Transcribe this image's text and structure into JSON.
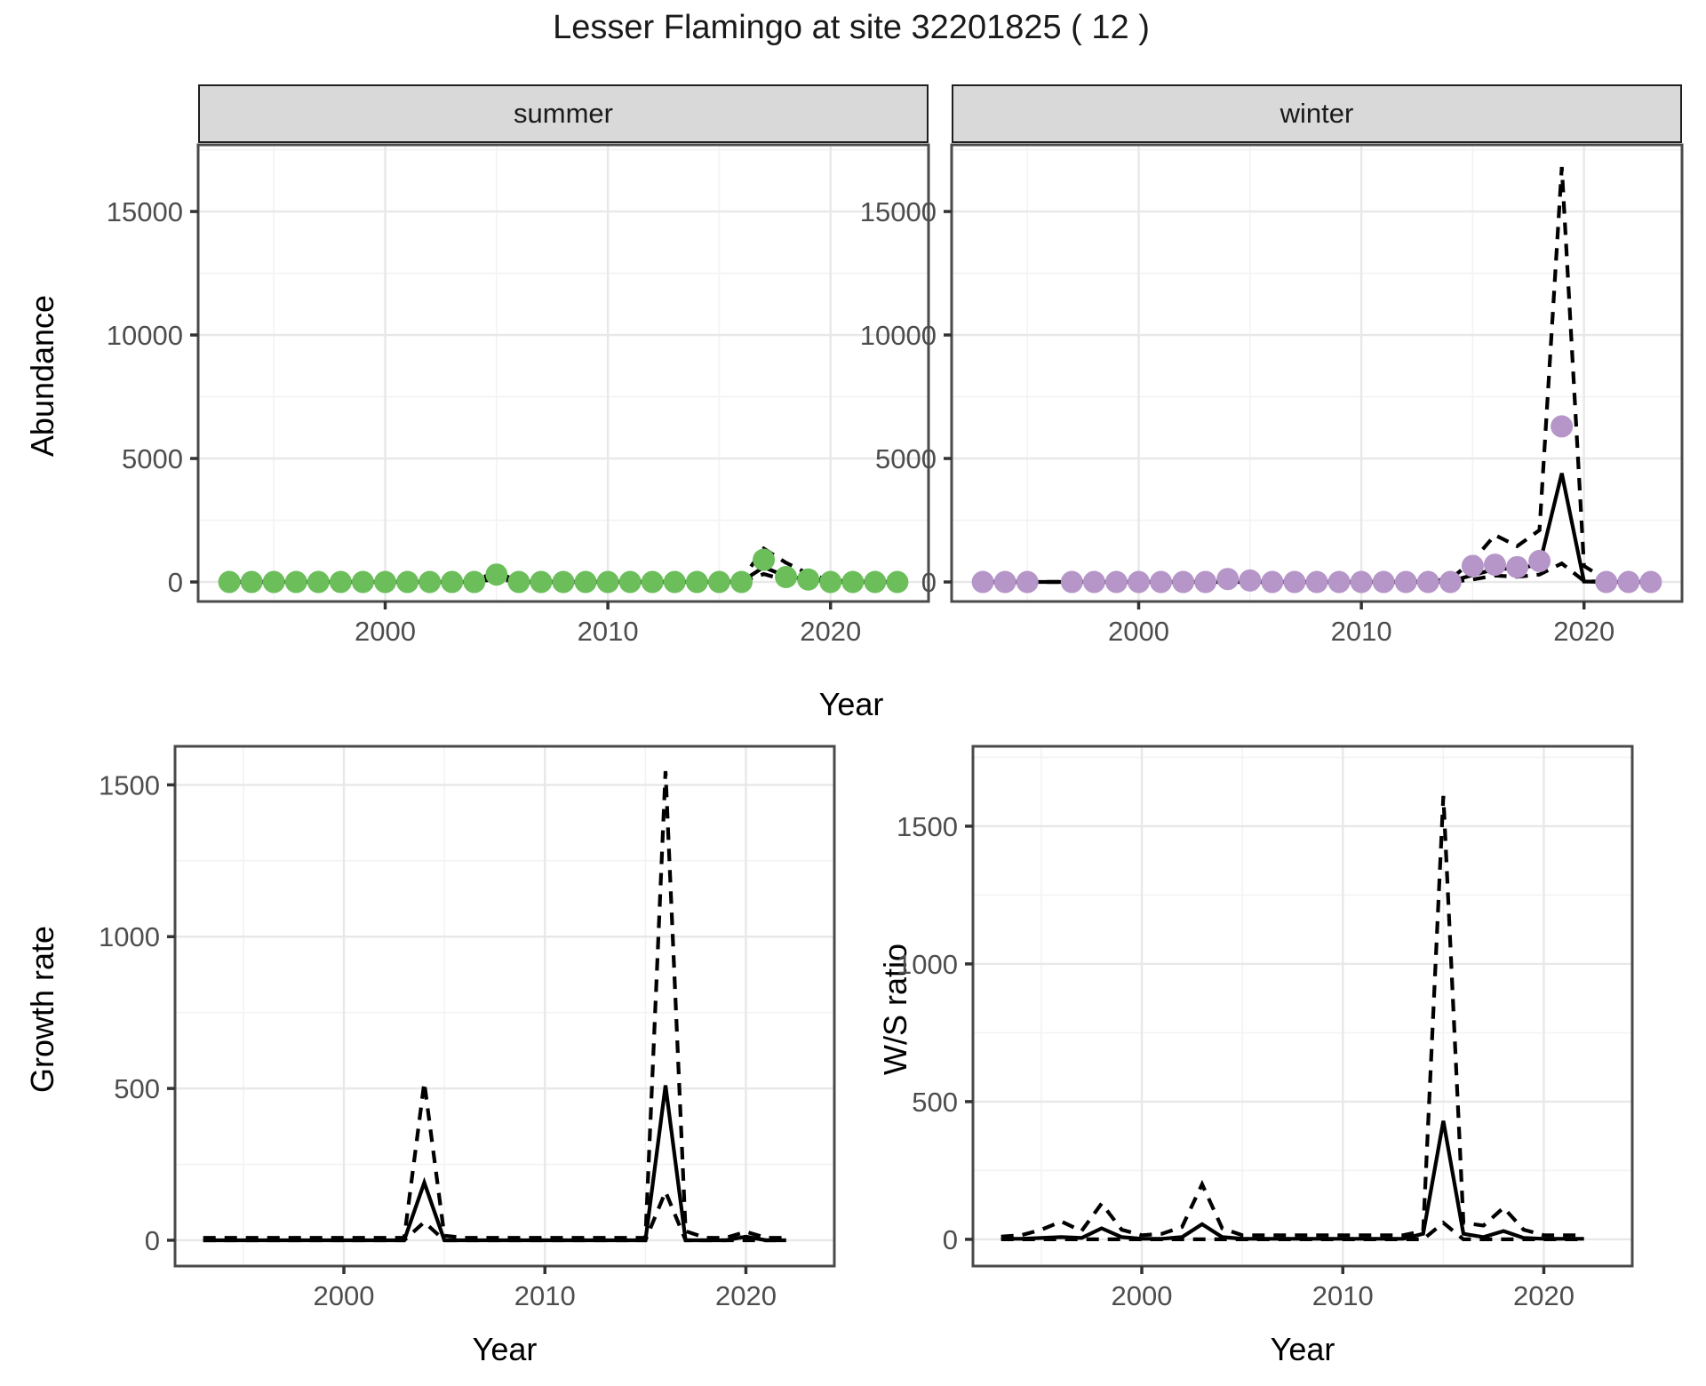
{
  "title": "Lesser Flamingo at site 32201825 ( 12 )",
  "facets": {
    "summer": "summer",
    "winter": "winter"
  },
  "axes": {
    "y_label_abundance": "Abundance",
    "y_label_growth": "Growth rate",
    "y_label_ws": "W/S ratio",
    "x_label_top": "Year",
    "x_label_growth": "Year",
    "x_label_ws": "Year"
  },
  "colors": {
    "summer_dot": "#6CBE5B",
    "winter_dot": "#B695C9",
    "line": "#000000",
    "strip_bg": "#d9d9d9",
    "panel_border": "#4a4a4a",
    "grid_major": "#e8e8e8",
    "grid_minor": "#f3f3f3",
    "tick_text": "#4d4d4d"
  },
  "chart_data": [
    {
      "id": "abundance_summer",
      "type": "line",
      "facet": "summer",
      "x_ticks": [
        2000,
        2010,
        2020
      ],
      "y_ticks": [
        0,
        5000,
        10000,
        15000
      ],
      "xlim": [
        1991.6,
        2024.4
      ],
      "ylim": [
        -790,
        17700
      ],
      "x": [
        1993,
        1994,
        1995,
        1996,
        1997,
        1998,
        1999,
        2000,
        2001,
        2002,
        2003,
        2004,
        2005,
        2006,
        2007,
        2008,
        2009,
        2010,
        2011,
        2012,
        2013,
        2014,
        2015,
        2016,
        2017,
        2018,
        2019,
        2020,
        2021,
        2022,
        2023
      ],
      "series": [
        {
          "name": "upper_ci",
          "style": "dashed",
          "values": [
            0,
            0,
            0,
            0,
            0,
            0,
            0,
            0,
            0,
            0,
            0,
            40,
            430,
            0,
            0,
            0,
            0,
            0,
            0,
            0,
            0,
            0,
            0,
            80,
            1350,
            780,
            330,
            60,
            20,
            0,
            0
          ]
        },
        {
          "name": "lower_ci",
          "style": "dashed",
          "values": [
            0,
            0,
            0,
            0,
            0,
            0,
            0,
            0,
            0,
            0,
            0,
            0,
            120,
            0,
            0,
            0,
            0,
            0,
            0,
            0,
            0,
            0,
            0,
            0,
            320,
            70,
            20,
            0,
            0,
            0,
            0
          ]
        },
        {
          "name": "modelled_mean",
          "style": "solid",
          "values": [
            0,
            0,
            0,
            0,
            0,
            0,
            0,
            0,
            0,
            0,
            0,
            0,
            290,
            0,
            0,
            0,
            0,
            0,
            0,
            0,
            0,
            0,
            0,
            20,
            600,
            230,
            90,
            10,
            0,
            0,
            0
          ]
        },
        {
          "name": "observed_counts",
          "style": "points",
          "color_key": "summer_dot",
          "values": [
            0,
            0,
            0,
            0,
            0,
            0,
            0,
            0,
            0,
            0,
            0,
            0,
            300,
            0,
            0,
            0,
            0,
            0,
            0,
            0,
            0,
            0,
            0,
            0,
            900,
            200,
            100,
            0,
            0,
            0,
            0
          ]
        }
      ]
    },
    {
      "id": "abundance_winter",
      "type": "line",
      "facet": "winter",
      "x_ticks": [
        2000,
        2010,
        2020
      ],
      "y_ticks": [
        0,
        5000,
        10000,
        15000
      ],
      "xlim": [
        1991.6,
        2024.4
      ],
      "ylim": [
        -790,
        17700
      ],
      "x": [
        1993,
        1994,
        1995,
        1996,
        1997,
        1998,
        1999,
        2000,
        2001,
        2002,
        2003,
        2004,
        2005,
        2006,
        2007,
        2008,
        2009,
        2010,
        2011,
        2012,
        2013,
        2014,
        2015,
        2016,
        2017,
        2018,
        2019,
        2020,
        2021,
        2022,
        2023
      ],
      "series": [
        {
          "name": "upper_ci",
          "style": "dashed",
          "values": [
            0,
            0,
            0,
            0,
            0,
            0,
            0,
            0,
            0,
            0,
            0,
            0,
            0,
            0,
            0,
            0,
            0,
            0,
            0,
            0,
            30,
            120,
            850,
            1900,
            1450,
            2100,
            16800,
            650,
            80,
            0,
            0
          ]
        },
        {
          "name": "lower_ci",
          "style": "dashed",
          "values": [
            0,
            0,
            0,
            0,
            0,
            0,
            0,
            0,
            0,
            0,
            0,
            0,
            0,
            0,
            0,
            0,
            0,
            0,
            0,
            0,
            0,
            0,
            100,
            260,
            210,
            300,
            750,
            40,
            0,
            0,
            0
          ]
        },
        {
          "name": "modelled_mean",
          "style": "solid",
          "values": [
            0,
            0,
            0,
            0,
            0,
            0,
            0,
            0,
            0,
            0,
            0,
            0,
            0,
            0,
            0,
            0,
            0,
            0,
            0,
            0,
            0,
            30,
            280,
            520,
            560,
            700,
            4400,
            20,
            0,
            0,
            0
          ]
        },
        {
          "name": "observed_counts",
          "style": "points",
          "color_key": "winter_dot",
          "values": [
            0,
            0,
            0,
            null,
            0,
            0,
            0,
            0,
            0,
            0,
            0,
            120,
            60,
            0,
            0,
            0,
            0,
            0,
            0,
            0,
            0,
            0,
            650,
            700,
            600,
            850,
            6300,
            null,
            0,
            0,
            0
          ]
        }
      ]
    },
    {
      "id": "growth_rate",
      "type": "line",
      "facet": null,
      "x_ticks": [
        2000,
        2010,
        2020
      ],
      "y_ticks": [
        0,
        500,
        1000,
        1500
      ],
      "xlim": [
        1991.6,
        2024.4
      ],
      "ylim": [
        -85,
        1627
      ],
      "x": [
        1993,
        1994,
        1995,
        1996,
        1997,
        1998,
        1999,
        2000,
        2001,
        2002,
        2003,
        2004,
        2005,
        2006,
        2007,
        2008,
        2009,
        2010,
        2011,
        2012,
        2013,
        2014,
        2015,
        2016,
        2017,
        2018,
        2019,
        2020,
        2021,
        2022
      ],
      "series": [
        {
          "name": "upper_ci",
          "style": "dashed",
          "values": [
            8,
            8,
            8,
            8,
            8,
            8,
            8,
            8,
            8,
            8,
            8,
            520,
            15,
            8,
            8,
            8,
            8,
            8,
            8,
            8,
            8,
            8,
            8,
            1545,
            30,
            8,
            8,
            28,
            8,
            8
          ]
        },
        {
          "name": "lower_ci",
          "style": "dashed",
          "values": [
            0,
            0,
            0,
            0,
            0,
            0,
            0,
            0,
            0,
            0,
            0,
            60,
            0,
            0,
            0,
            0,
            0,
            0,
            0,
            0,
            0,
            0,
            0,
            160,
            0,
            0,
            0,
            0,
            0,
            0
          ]
        },
        {
          "name": "modelled_mean",
          "style": "solid",
          "values": [
            0,
            0,
            0,
            0,
            0,
            0,
            0,
            0,
            0,
            0,
            0,
            190,
            0,
            0,
            0,
            0,
            0,
            0,
            0,
            0,
            0,
            0,
            0,
            510,
            0,
            0,
            0,
            12,
            0,
            0
          ]
        }
      ]
    },
    {
      "id": "ws_ratio",
      "type": "line",
      "facet": null,
      "x_ticks": [
        2000,
        2010,
        2020
      ],
      "y_ticks": [
        0,
        500,
        1000,
        1500
      ],
      "xlim": [
        1991.6,
        2024.4
      ],
      "ylim": [
        -97,
        1790
      ],
      "x": [
        1993,
        1994,
        1995,
        1996,
        1997,
        1998,
        1999,
        2000,
        2001,
        2002,
        2003,
        2004,
        2005,
        2006,
        2007,
        2008,
        2009,
        2010,
        2011,
        2012,
        2013,
        2014,
        2015,
        2016,
        2017,
        2018,
        2019,
        2020,
        2021,
        2022
      ],
      "series": [
        {
          "name": "upper_ci",
          "style": "dashed",
          "values": [
            10,
            15,
            35,
            65,
            30,
            130,
            35,
            15,
            20,
            45,
            200,
            40,
            15,
            15,
            15,
            15,
            15,
            15,
            15,
            15,
            15,
            30,
            1610,
            60,
            50,
            115,
            35,
            15,
            15,
            15
          ]
        },
        {
          "name": "lower_ci",
          "style": "dashed",
          "values": [
            0,
            0,
            0,
            0,
            0,
            0,
            0,
            0,
            0,
            0,
            0,
            0,
            0,
            0,
            0,
            0,
            0,
            0,
            0,
            0,
            0,
            0,
            60,
            0,
            0,
            0,
            0,
            0,
            0,
            0
          ]
        },
        {
          "name": "modelled_mean",
          "style": "solid",
          "values": [
            2,
            2,
            5,
            8,
            5,
            40,
            8,
            2,
            2,
            8,
            55,
            8,
            2,
            2,
            2,
            2,
            2,
            2,
            2,
            2,
            2,
            20,
            430,
            20,
            8,
            30,
            5,
            2,
            2,
            2
          ]
        }
      ]
    }
  ]
}
